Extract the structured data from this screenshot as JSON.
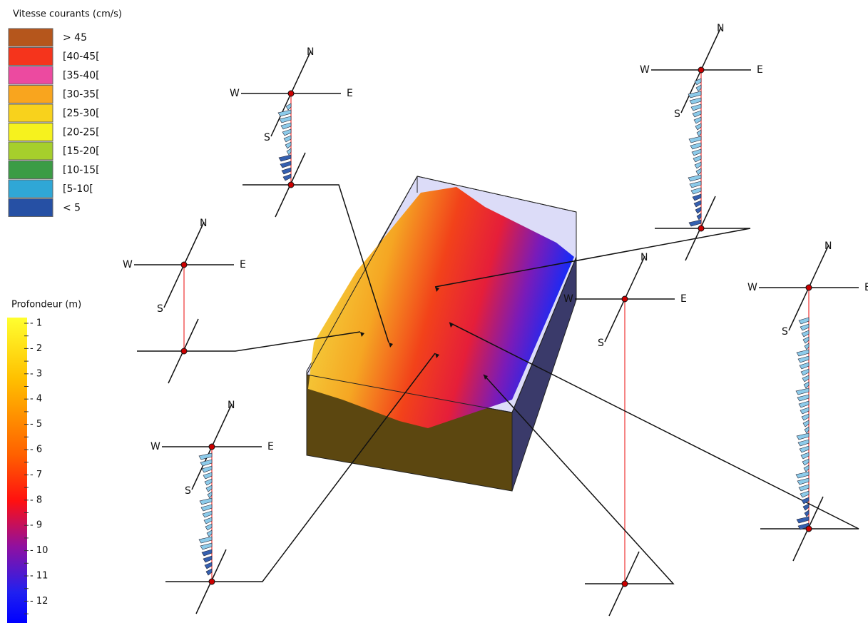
{
  "speed_legend": {
    "title": "Vitesse courants (cm/s)",
    "items": [
      {
        "label": "> 45",
        "color": "#b5561c"
      },
      {
        "label": "[40-45[",
        "color": "#f5341c"
      },
      {
        "label": "[35-40[",
        "color": "#ec4aa0"
      },
      {
        "label": "[30-35[",
        "color": "#f9a51e"
      },
      {
        "label": "[25-30[",
        "color": "#f8d21c"
      },
      {
        "label": "[20-25[",
        "color": "#f6f21e"
      },
      {
        "label": "[15-20[",
        "color": "#a6cf2c"
      },
      {
        "label": "[10-15[",
        "color": "#3b9c45"
      },
      {
        "label": "[5-10[",
        "color": "#2fa7d6"
      },
      {
        "label": "< 5",
        "color": "#2650a4"
      }
    ]
  },
  "depth_legend": {
    "title": "Profondeur (m)",
    "labels": [
      "- 1",
      "- 2",
      "- 3",
      "- 4",
      "- 5",
      "- 6",
      "- 7",
      "- 8",
      "- 9",
      "- 10",
      "- 11",
      "- 12"
    ]
  },
  "compass": {
    "north": "N",
    "south": "S",
    "east": "E",
    "west": "W"
  }
}
